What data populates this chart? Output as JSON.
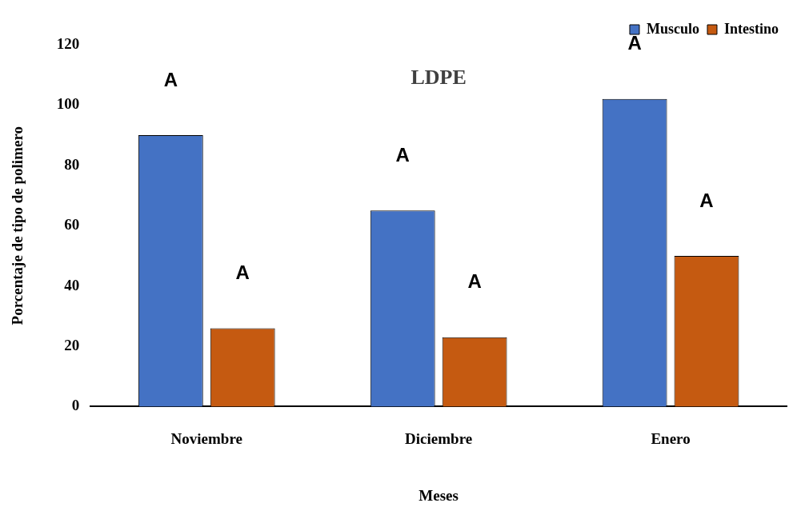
{
  "chart_data": {
    "type": "bar",
    "title": "LDPE",
    "xlabel": "Meses",
    "ylabel": "Porcentaje de tipo de polimero",
    "categories": [
      "Noviembre",
      "Diciembre",
      "Enero"
    ],
    "series": [
      {
        "name": "Musculo",
        "color": "#4472c4",
        "values": [
          90,
          65,
          102
        ]
      },
      {
        "name": "Intestino",
        "color": "#c55a11",
        "values": [
          26,
          23,
          50
        ]
      }
    ],
    "ylim": [
      0,
      120
    ],
    "yticks": [
      0,
      20,
      40,
      60,
      80,
      100,
      120
    ],
    "grid": false,
    "legend": "top right",
    "annotations": [
      "A",
      "A",
      "A",
      "A",
      "A",
      "A"
    ]
  }
}
